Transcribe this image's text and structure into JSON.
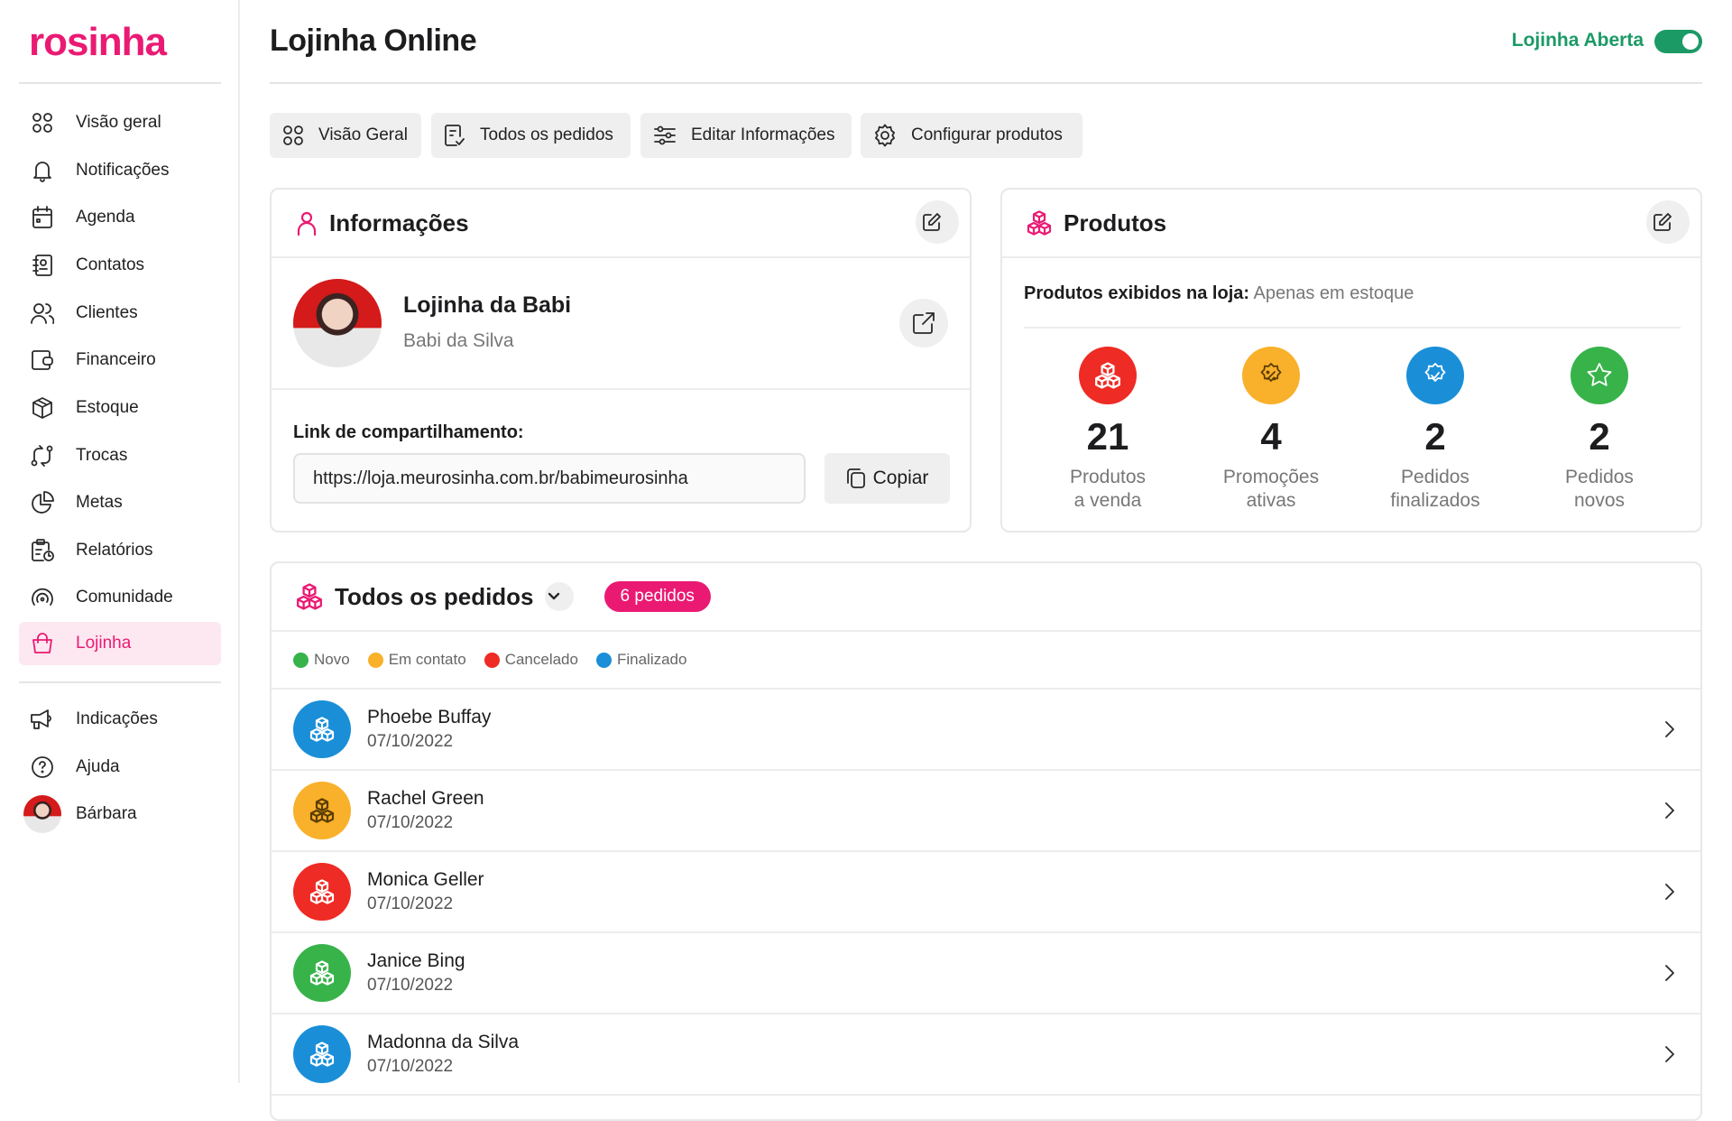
{
  "brand": {
    "logo": "rosinha",
    "accent": "#ea1a73"
  },
  "sidebar": {
    "items": [
      {
        "label": "Visão geral",
        "icon": "grid-icon"
      },
      {
        "label": "Notificações",
        "icon": "bell-icon"
      },
      {
        "label": "Agenda",
        "icon": "calendar-icon"
      },
      {
        "label": "Contatos",
        "icon": "contacts-icon"
      },
      {
        "label": "Clientes",
        "icon": "users-icon"
      },
      {
        "label": "Financeiro",
        "icon": "wallet-icon"
      },
      {
        "label": "Estoque",
        "icon": "box-icon"
      },
      {
        "label": "Trocas",
        "icon": "exchange-icon"
      },
      {
        "label": "Metas",
        "icon": "pie-icon"
      },
      {
        "label": "Relatórios",
        "icon": "report-icon"
      },
      {
        "label": "Comunidade",
        "icon": "broadcast-icon"
      },
      {
        "label": "Lojinha",
        "icon": "bag-icon",
        "active": true
      }
    ],
    "bottom": [
      {
        "label": "Indicações",
        "icon": "megaphone-icon"
      },
      {
        "label": "Ajuda",
        "icon": "help-icon"
      },
      {
        "label": "Bárbara",
        "icon": "avatar"
      }
    ]
  },
  "header": {
    "title": "Lojinha Online",
    "store_status": "Lojinha Aberta",
    "store_open": true
  },
  "tabs": [
    {
      "label": "Visão Geral"
    },
    {
      "label": "Todos os pedidos"
    },
    {
      "label": "Editar Informações"
    },
    {
      "label": "Configurar produtos"
    }
  ],
  "info": {
    "title": "Informações",
    "store_name": "Lojinha da Babi",
    "owner": "Babi da Silva",
    "link_label": "Link de compartilhamento:",
    "link_value": "https://loja.meurosinha.com.br/babimeurosinha",
    "copy_label": "Copiar"
  },
  "products": {
    "title": "Produtos",
    "display_label": "Produtos exibidos na loja:",
    "display_value": "Apenas em estoque",
    "stats": [
      {
        "value": "21",
        "line1": "Produtos",
        "line2": "a venda",
        "color": "#ee2b24",
        "icon": "cubes-icon"
      },
      {
        "value": "4",
        "line1": "Promoções",
        "line2": "ativas",
        "color": "#f9b02a",
        "icon": "discount-badge-icon"
      },
      {
        "value": "2",
        "line1": "Pedidos",
        "line2": "finalizados",
        "color": "#1a8fd8",
        "icon": "check-badge-icon"
      },
      {
        "value": "2",
        "line1": "Pedidos",
        "line2": "novos",
        "color": "#37b34a",
        "icon": "star-icon"
      }
    ]
  },
  "orders": {
    "title": "Todos os pedidos",
    "badge": "6 pedidos",
    "legend": [
      {
        "label": "Novo",
        "color": "#37b34a"
      },
      {
        "label": "Em contato",
        "color": "#f9b02a"
      },
      {
        "label": "Cancelado",
        "color": "#ee2b24"
      },
      {
        "label": "Finalizado",
        "color": "#1a8fd8"
      }
    ],
    "rows": [
      {
        "name": "Phoebe Buffay",
        "date": "07/10/2022",
        "status": "Finalizado",
        "color": "#1a8fd8"
      },
      {
        "name": "Rachel Green",
        "date": "07/10/2022",
        "status": "Em contato",
        "color": "#f9b02a"
      },
      {
        "name": "Monica Geller",
        "date": "07/10/2022",
        "status": "Cancelado",
        "color": "#ee2b24"
      },
      {
        "name": "Janice Bing",
        "date": "07/10/2022",
        "status": "Novo",
        "color": "#37b34a"
      },
      {
        "name": "Madonna da Silva",
        "date": "07/10/2022",
        "status": "Finalizado",
        "color": "#1a8fd8"
      }
    ]
  }
}
